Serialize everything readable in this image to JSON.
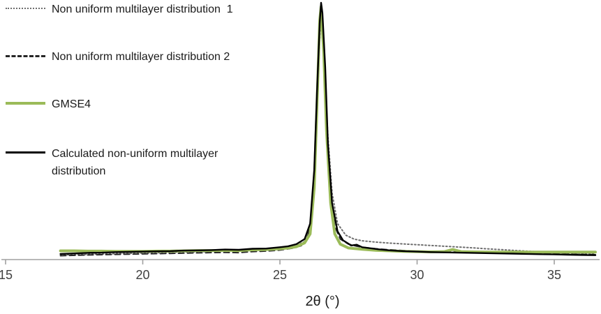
{
  "chart_data": {
    "type": "line",
    "title": "",
    "xlabel": "2θ (°)",
    "ylabel": "",
    "xlim": [
      15,
      36.5
    ],
    "ylim": [
      0,
      100
    ],
    "xticks": [
      15,
      20,
      25,
      30,
      35
    ],
    "grid": false,
    "legend_position": "top-left",
    "axis_color": "#a0a0a0",
    "tick_color": "#404040",
    "series": [
      {
        "id": "dist1",
        "name": "Non uniform multilayer distribution  1",
        "style": "dotted",
        "color": "#6e6e6e",
        "width": 2,
        "dash": "1.8 3.2",
        "points": [
          [
            17,
            1.8
          ],
          [
            18,
            2.0
          ],
          [
            19,
            2.3
          ],
          [
            20,
            2.5
          ],
          [
            21,
            2.8
          ],
          [
            22,
            3.0
          ],
          [
            23,
            3.3
          ],
          [
            24,
            3.6
          ],
          [
            24.5,
            3.8
          ],
          [
            25,
            4.2
          ],
          [
            25.5,
            5.0
          ],
          [
            25.9,
            7
          ],
          [
            26.1,
            13
          ],
          [
            26.3,
            40
          ],
          [
            26.45,
            85
          ],
          [
            26.5,
            94
          ],
          [
            26.6,
            78
          ],
          [
            26.75,
            48
          ],
          [
            26.9,
            26
          ],
          [
            27.1,
            14
          ],
          [
            27.4,
            9.5
          ],
          [
            27.7,
            8
          ],
          [
            28,
            7.3
          ],
          [
            28.5,
            6.8
          ],
          [
            29,
            6.4
          ],
          [
            29.5,
            6.1
          ],
          [
            30,
            5.8
          ],
          [
            30.5,
            5.5
          ],
          [
            31,
            5.2
          ],
          [
            31.5,
            4.9
          ],
          [
            32,
            4.6
          ],
          [
            32.5,
            4.2
          ],
          [
            33,
            3.9
          ],
          [
            33.5,
            3.6
          ],
          [
            34,
            3.3
          ],
          [
            34.5,
            3.0
          ],
          [
            35,
            2.8
          ],
          [
            35.5,
            2.5
          ],
          [
            36,
            2.3
          ],
          [
            36.5,
            2.2
          ]
        ]
      },
      {
        "id": "dist2",
        "name": "Non uniform multilayer distribution 2",
        "style": "dashed",
        "color": "#262626",
        "width": 2,
        "dash": "8 5",
        "points": [
          [
            17,
            1.5
          ],
          [
            18,
            1.8
          ],
          [
            19,
            2.0
          ],
          [
            20,
            2.2
          ],
          [
            21,
            2.4
          ],
          [
            22,
            2.6
          ],
          [
            23,
            2.8
          ],
          [
            23.5,
            2.7
          ],
          [
            24,
            3.1
          ],
          [
            24.5,
            3.3
          ],
          [
            25,
            3.7
          ],
          [
            25.5,
            4.5
          ],
          [
            25.8,
            5.5
          ],
          [
            26,
            8
          ],
          [
            26.2,
            20
          ],
          [
            26.35,
            55
          ],
          [
            26.45,
            88
          ],
          [
            26.5,
            97
          ],
          [
            26.6,
            82
          ],
          [
            26.7,
            52
          ],
          [
            26.85,
            25
          ],
          [
            27,
            13
          ],
          [
            27.2,
            8
          ],
          [
            27.5,
            6
          ],
          [
            27.8,
            5.2
          ],
          [
            28,
            4.8
          ],
          [
            28.5,
            4.2
          ],
          [
            29,
            3.8
          ],
          [
            29.5,
            3.5
          ],
          [
            30,
            3.3
          ],
          [
            30.5,
            3.1
          ],
          [
            31,
            3.0
          ],
          [
            31.5,
            2.9
          ],
          [
            32,
            2.8
          ],
          [
            32.5,
            2.7
          ],
          [
            33,
            2.6
          ],
          [
            33.5,
            2.5
          ],
          [
            34,
            2.4
          ],
          [
            34.5,
            2.3
          ],
          [
            35,
            2.2
          ],
          [
            35.5,
            2.1
          ],
          [
            36,
            2.0
          ],
          [
            36.5,
            1.9
          ]
        ]
      },
      {
        "id": "gmse4",
        "name": "GMSE4",
        "style": "solid",
        "color": "#9BBB59",
        "width": 4,
        "dash": null,
        "points": [
          [
            17,
            3.4
          ],
          [
            17.5,
            3.4
          ],
          [
            18,
            3.3
          ],
          [
            18.5,
            3.3
          ],
          [
            19,
            3.2
          ],
          [
            19.5,
            3.2
          ],
          [
            20,
            3.2
          ],
          [
            20.5,
            3.3
          ],
          [
            21,
            3.3
          ],
          [
            21.5,
            3.4
          ],
          [
            22,
            3.5
          ],
          [
            22.5,
            3.5
          ],
          [
            23,
            3.6
          ],
          [
            23.5,
            3.5
          ],
          [
            24,
            3.8
          ],
          [
            24.5,
            3.9
          ],
          [
            25,
            4.2
          ],
          [
            25.3,
            4.5
          ],
          [
            25.6,
            5.0
          ],
          [
            25.9,
            6.5
          ],
          [
            26.1,
            10
          ],
          [
            26.25,
            28
          ],
          [
            26.35,
            60
          ],
          [
            26.45,
            93
          ],
          [
            26.5,
            98.5
          ],
          [
            26.6,
            80
          ],
          [
            26.7,
            50
          ],
          [
            26.85,
            22
          ],
          [
            27,
            10
          ],
          [
            27.2,
            6
          ],
          [
            27.5,
            4.5
          ],
          [
            28,
            4.0
          ],
          [
            28.5,
            3.6
          ],
          [
            29,
            3.4
          ],
          [
            29.5,
            3.2
          ],
          [
            30,
            3.1
          ],
          [
            30.5,
            3.0
          ],
          [
            31,
            3.1
          ],
          [
            31.3,
            3.9
          ],
          [
            31.6,
            3.1
          ],
          [
            32,
            3.0
          ],
          [
            32.5,
            2.9
          ],
          [
            33,
            2.9
          ],
          [
            33.5,
            2.9
          ],
          [
            34,
            2.9
          ],
          [
            34.5,
            2.9
          ],
          [
            35,
            2.9
          ],
          [
            35.5,
            2.9
          ],
          [
            36,
            2.9
          ],
          [
            36.5,
            2.9
          ]
        ]
      },
      {
        "id": "calc",
        "name": "Calculated non-uniform multilayer distribution",
        "style": "solid",
        "color": "#000000",
        "width": 2.4,
        "dash": null,
        "points": [
          [
            17,
            2.2
          ],
          [
            17.5,
            2.4
          ],
          [
            18,
            2.6
          ],
          [
            18.5,
            2.7
          ],
          [
            19,
            2.9
          ],
          [
            19.5,
            3.0
          ],
          [
            20,
            3.1
          ],
          [
            20.5,
            3.2
          ],
          [
            21,
            3.3
          ],
          [
            21.5,
            3.5
          ],
          [
            22,
            3.6
          ],
          [
            22.5,
            3.7
          ],
          [
            23,
            3.9
          ],
          [
            23.5,
            3.8
          ],
          [
            24,
            4.2
          ],
          [
            24.5,
            4.3
          ],
          [
            25,
            4.8
          ],
          [
            25.3,
            5.2
          ],
          [
            25.6,
            6.0
          ],
          [
            25.9,
            8
          ],
          [
            26.1,
            14
          ],
          [
            26.25,
            35
          ],
          [
            26.35,
            65
          ],
          [
            26.45,
            92
          ],
          [
            26.5,
            100
          ],
          [
            26.55,
            96
          ],
          [
            26.65,
            75
          ],
          [
            26.75,
            45
          ],
          [
            26.9,
            22
          ],
          [
            27.1,
            11
          ],
          [
            27.3,
            7.5
          ],
          [
            27.6,
            5.5
          ],
          [
            27.8,
            5.8
          ],
          [
            28,
            4.8
          ],
          [
            28.3,
            4.4
          ],
          [
            28.6,
            4.0
          ],
          [
            29,
            3.6
          ],
          [
            29.5,
            3.3
          ],
          [
            30,
            3.1
          ],
          [
            30.5,
            2.9
          ],
          [
            31,
            2.8
          ],
          [
            31.5,
            2.7
          ],
          [
            32,
            2.6
          ],
          [
            32.5,
            2.5
          ],
          [
            33,
            2.4
          ],
          [
            33.5,
            2.3
          ],
          [
            34,
            2.2
          ],
          [
            34.5,
            2.1
          ],
          [
            35,
            2.0
          ],
          [
            35.5,
            1.9
          ],
          [
            36,
            1.8
          ],
          [
            36.5,
            1.7
          ]
        ]
      }
    ]
  }
}
